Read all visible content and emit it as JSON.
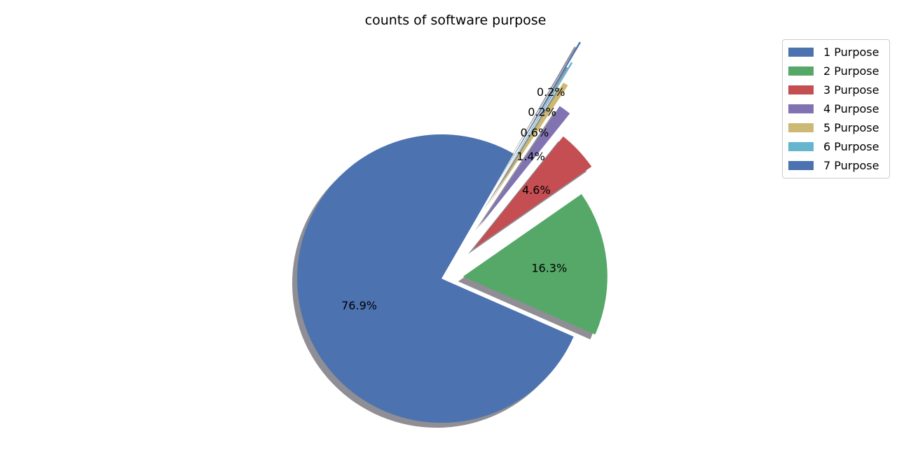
{
  "chart_data": {
    "type": "pie",
    "title": "counts of software purpose",
    "categories": [
      "1 Purpose",
      "2 Purpose",
      "3 Purpose",
      "4 Purpose",
      "5 Purpose",
      "6 Purpose",
      "7 Purpose"
    ],
    "values": [
      76.9,
      16.3,
      4.6,
      1.4,
      0.6,
      0.2,
      0.2
    ],
    "labels": [
      "76.9%",
      "16.3%",
      "4.6%",
      "1.4%",
      "0.6%",
      "0.2%",
      "0.2%"
    ],
    "exploded": [
      false,
      true,
      true,
      true,
      true,
      true,
      true
    ],
    "shadow": true,
    "colors": [
      "#4c72b0",
      "#55a868",
      "#c44e52",
      "#8172b2",
      "#ccb974",
      "#64b5cd",
      "#4c72b0"
    ],
    "legend_position": "top-right"
  }
}
